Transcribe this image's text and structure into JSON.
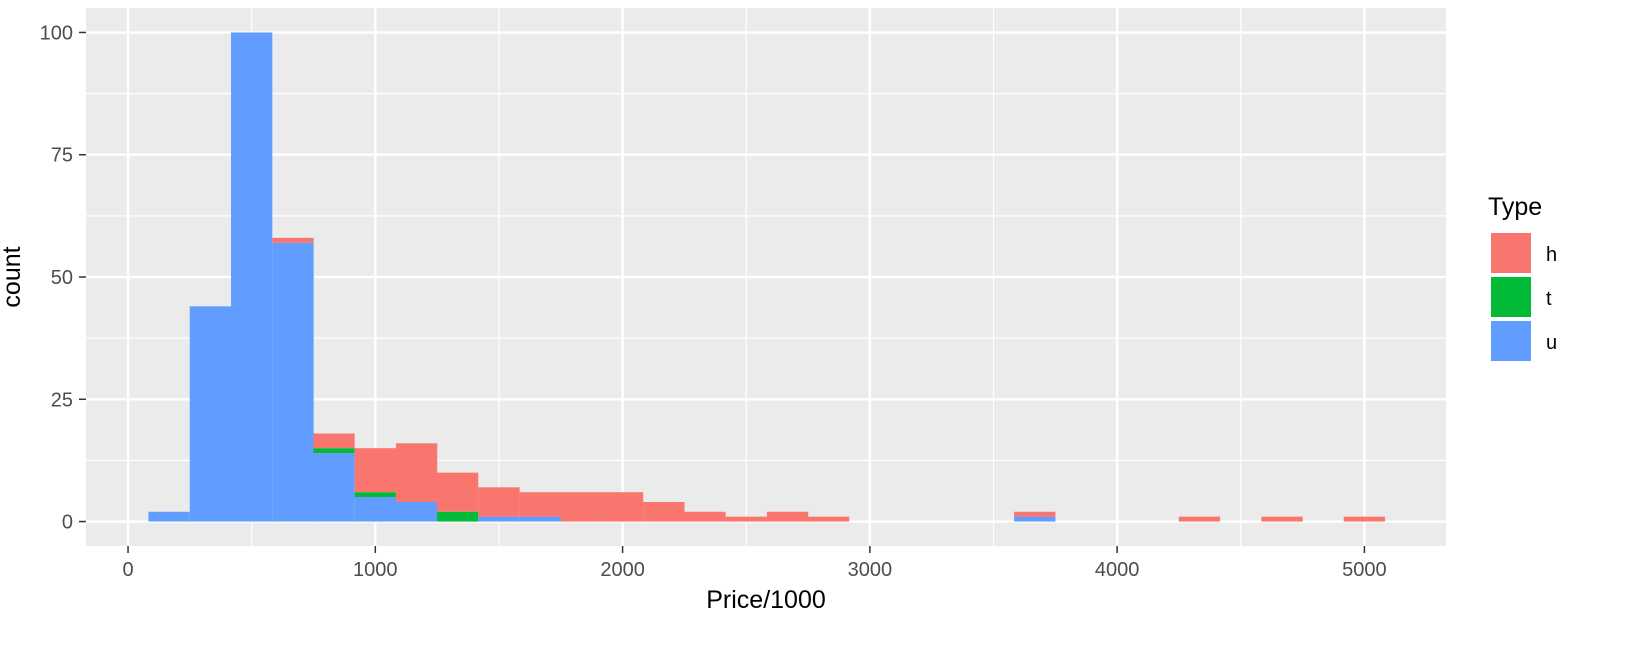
{
  "chart_data": {
    "type": "bar",
    "subtype": "stacked-histogram",
    "xlabel": "Price/1000",
    "ylabel": "count",
    "xlim": [
      -170,
      5330
    ],
    "ylim": [
      -5,
      105
    ],
    "x_ticks": [
      0,
      1000,
      2000,
      3000,
      4000,
      5000
    ],
    "x_tick_labels": [
      "0",
      "1000",
      "2000",
      "3000",
      "4000",
      "5000"
    ],
    "y_ticks": [
      0,
      25,
      50,
      75,
      100
    ],
    "y_tick_labels": [
      "0",
      "25",
      "50",
      "75",
      "100"
    ],
    "grid": true,
    "background": "#ebebeb",
    "legend": {
      "title": "Type",
      "position": "right",
      "entries": [
        {
          "label": "h",
          "color": "#f8766d"
        },
        {
          "label": "t",
          "color": "#00ba38"
        },
        {
          "label": "u",
          "color": "#619cff"
        }
      ]
    },
    "bin_width": 167,
    "bin_centers": [
      166,
      333,
      500,
      667,
      833,
      1000,
      1167,
      1333,
      1500,
      1667,
      1833,
      2000,
      2167,
      2333,
      2500,
      2667,
      2833,
      3000,
      3167,
      3333,
      3500,
      3667,
      3833,
      4000,
      4167,
      4333,
      4500,
      4667,
      4833,
      5000
    ],
    "stack_order": [
      "h",
      "t",
      "u"
    ],
    "series": [
      {
        "name": "h",
        "color": "#f8766d",
        "values": [
          0,
          0,
          0,
          1,
          3,
          9,
          12,
          8,
          6,
          5,
          6,
          6,
          4,
          2,
          1,
          2,
          1,
          0,
          0,
          0,
          0,
          1,
          0,
          0,
          0,
          1,
          0,
          1,
          0,
          1
        ]
      },
      {
        "name": "t",
        "color": "#00ba38",
        "values": [
          0,
          0,
          0,
          0,
          1,
          1,
          0,
          2,
          0,
          0,
          0,
          0,
          0,
          0,
          0,
          0,
          0,
          0,
          0,
          0,
          0,
          0,
          0,
          0,
          0,
          0,
          0,
          0,
          0,
          0
        ]
      },
      {
        "name": "u",
        "color": "#619cff",
        "values": [
          2,
          44,
          100,
          57,
          14,
          5,
          4,
          0,
          1,
          1,
          0,
          0,
          0,
          0,
          0,
          0,
          0,
          0,
          0,
          0,
          0,
          1,
          0,
          0,
          0,
          0,
          0,
          0,
          0,
          0
        ]
      }
    ]
  }
}
